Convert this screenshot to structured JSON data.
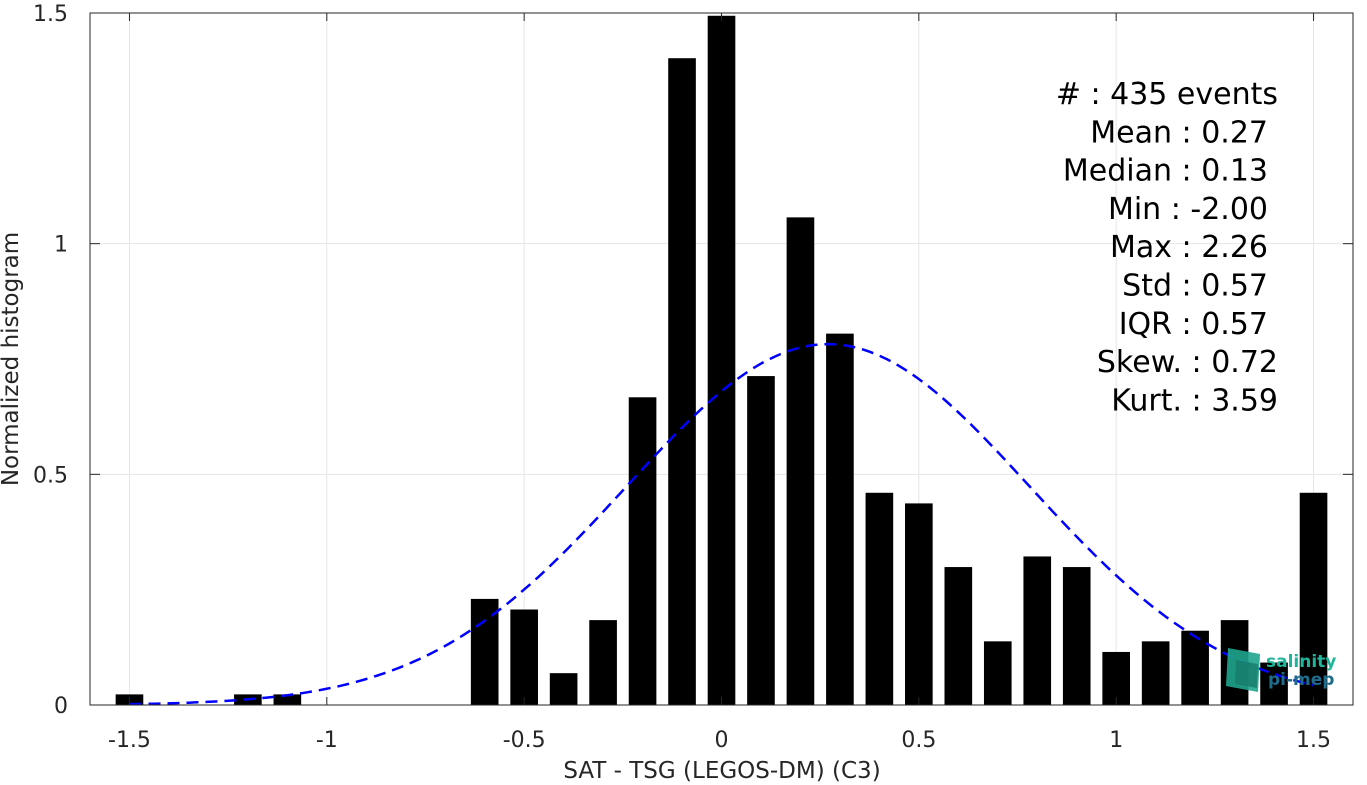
{
  "chart_data": {
    "type": "bar",
    "xlabel": "SAT - TSG (LEGOS-DM) (C3)",
    "ylabel": "Normalized histogram",
    "xlim": [
      -1.6,
      1.6
    ],
    "ylim": [
      0,
      1.5
    ],
    "xticks": [
      -1.5,
      -1,
      -0.5,
      0,
      0.5,
      1,
      1.5
    ],
    "xtick_labels": [
      "-1.5",
      "-1",
      "-0.5",
      "0",
      "0.5",
      "1",
      "1.5"
    ],
    "yticks": [
      0,
      0.5,
      1,
      1.5
    ],
    "ytick_labels": [
      "0",
      "0.5",
      "1",
      "1.5"
    ],
    "grid": true,
    "bar_width": 0.07,
    "bars": [
      {
        "x": -1.5,
        "value": 0.023
      },
      {
        "x": -1.2,
        "value": 0.023
      },
      {
        "x": -1.1,
        "value": 0.023
      },
      {
        "x": -0.6,
        "value": 0.23
      },
      {
        "x": -0.5,
        "value": 0.207
      },
      {
        "x": -0.4,
        "value": 0.069
      },
      {
        "x": -0.3,
        "value": 0.184
      },
      {
        "x": -0.2,
        "value": 0.667
      },
      {
        "x": -0.1,
        "value": 1.402
      },
      {
        "x": 0.0,
        "value": 1.494
      },
      {
        "x": 0.1,
        "value": 0.713
      },
      {
        "x": 0.2,
        "value": 1.057
      },
      {
        "x": 0.3,
        "value": 0.805
      },
      {
        "x": 0.4,
        "value": 0.46
      },
      {
        "x": 0.5,
        "value": 0.437
      },
      {
        "x": 0.6,
        "value": 0.299
      },
      {
        "x": 0.7,
        "value": 0.138
      },
      {
        "x": 0.8,
        "value": 0.322
      },
      {
        "x": 0.9,
        "value": 0.299
      },
      {
        "x": 1.0,
        "value": 0.115
      },
      {
        "x": 1.1,
        "value": 0.138
      },
      {
        "x": 1.2,
        "value": 0.161
      },
      {
        "x": 1.3,
        "value": 0.184
      },
      {
        "x": 1.4,
        "value": 0.092
      },
      {
        "x": 1.5,
        "value": 0.46
      }
    ],
    "fit_curve": {
      "style": "dashed",
      "color": "#0000ff",
      "distribution": "normal",
      "mean": 0.27,
      "std": 0.51,
      "x_range": [
        -1.5,
        1.5
      ]
    },
    "stats_lines": [
      "#  : 435 events",
      "Mean : 0.27",
      "Median : 0.13",
      "Min : -2.00",
      "Max : 2.26",
      "Std : 0.57",
      "IQR : 0.57",
      "Skew. : 0.72",
      "Kurt. : 3.59"
    ]
  },
  "logo": {
    "line1": "salinity",
    "line2": "pi-mep",
    "color_primary": "#1fb59a",
    "color_secondary": "#1f6b8a"
  },
  "colors": {
    "bar": "#000000",
    "axis": "#262626",
    "grid": "#e6e6e6"
  }
}
